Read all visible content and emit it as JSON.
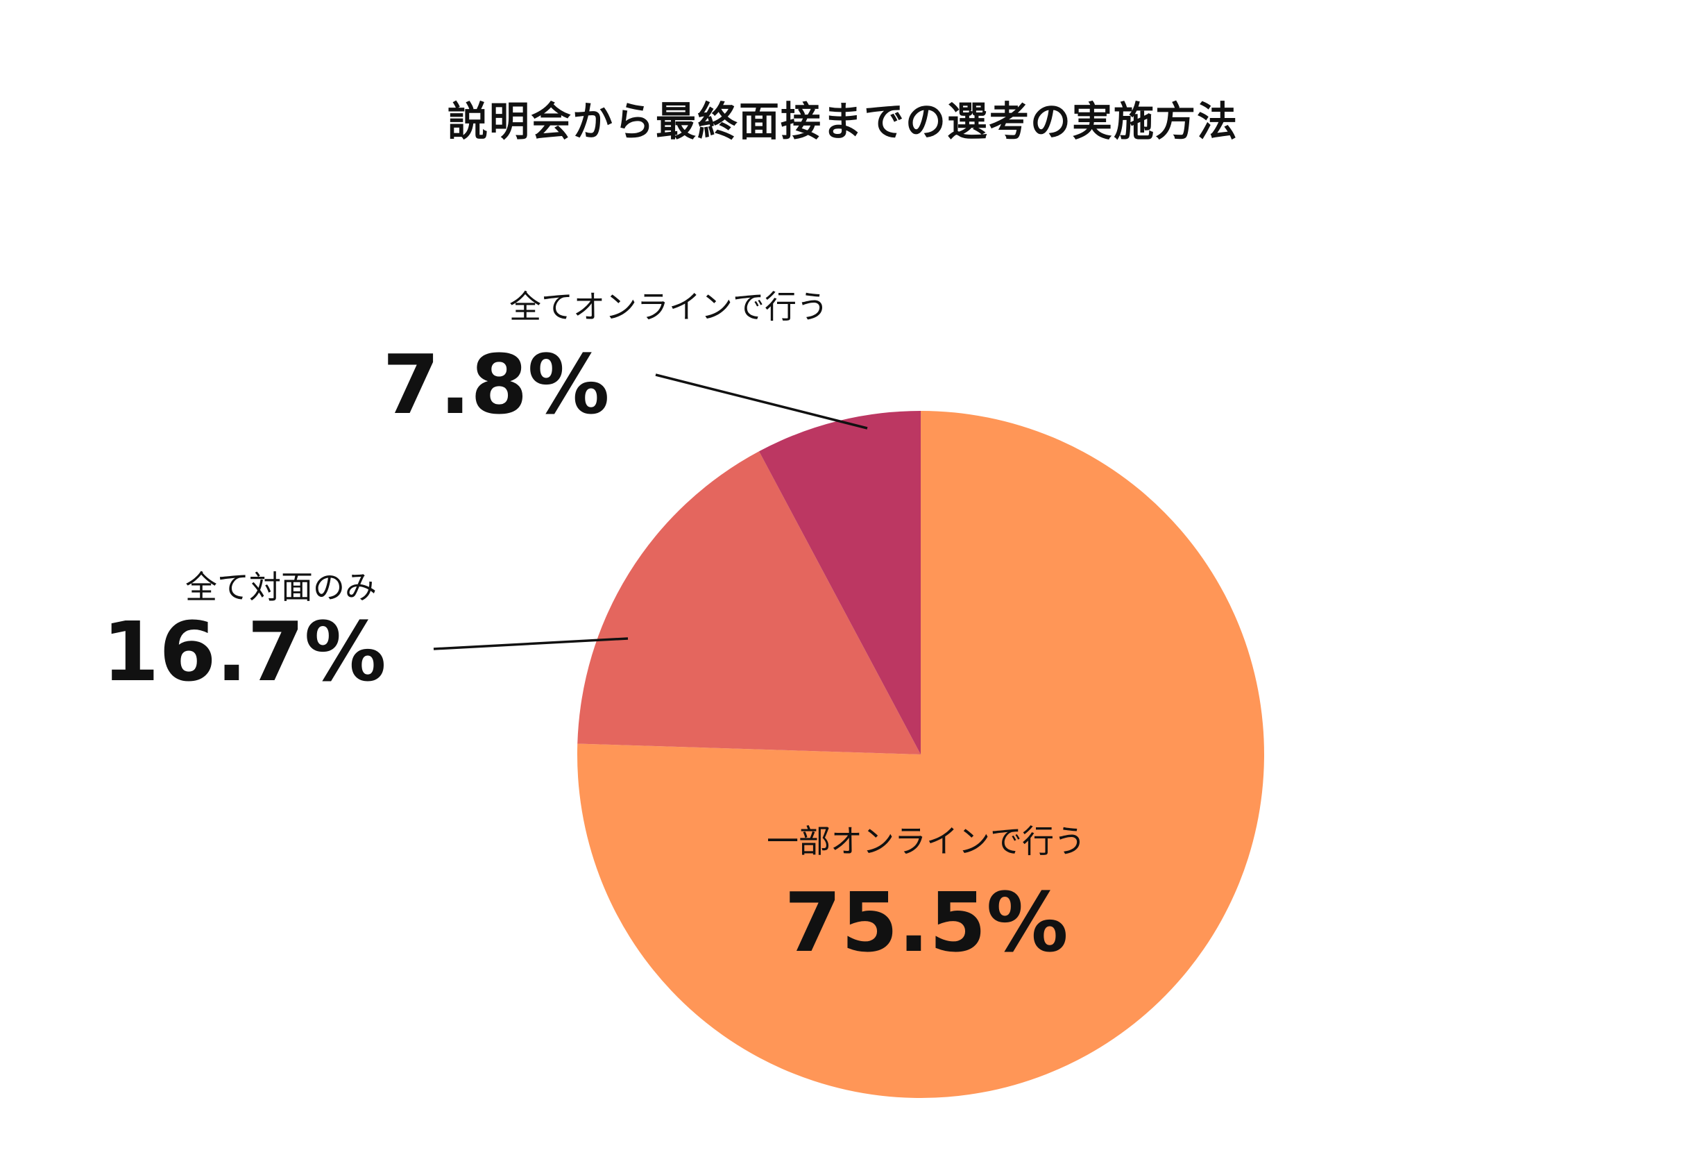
{
  "chart_data": {
    "type": "pie",
    "title": "説明会から最終面接までの選考の実施方法",
    "slices": [
      {
        "label": "一部オンラインで行う",
        "value": 75.5,
        "value_label": "75.5%",
        "color": "#FF9657"
      },
      {
        "label": "全て対面のみ",
        "value": 16.7,
        "value_label": "16.7%",
        "color": "#E4665E"
      },
      {
        "label": "全てオンラインで行う",
        "value": 7.8,
        "value_label": "7.8%",
        "color": "#BC3762"
      }
    ],
    "start": "top",
    "direction": "clockwise",
    "legend": "none"
  }
}
